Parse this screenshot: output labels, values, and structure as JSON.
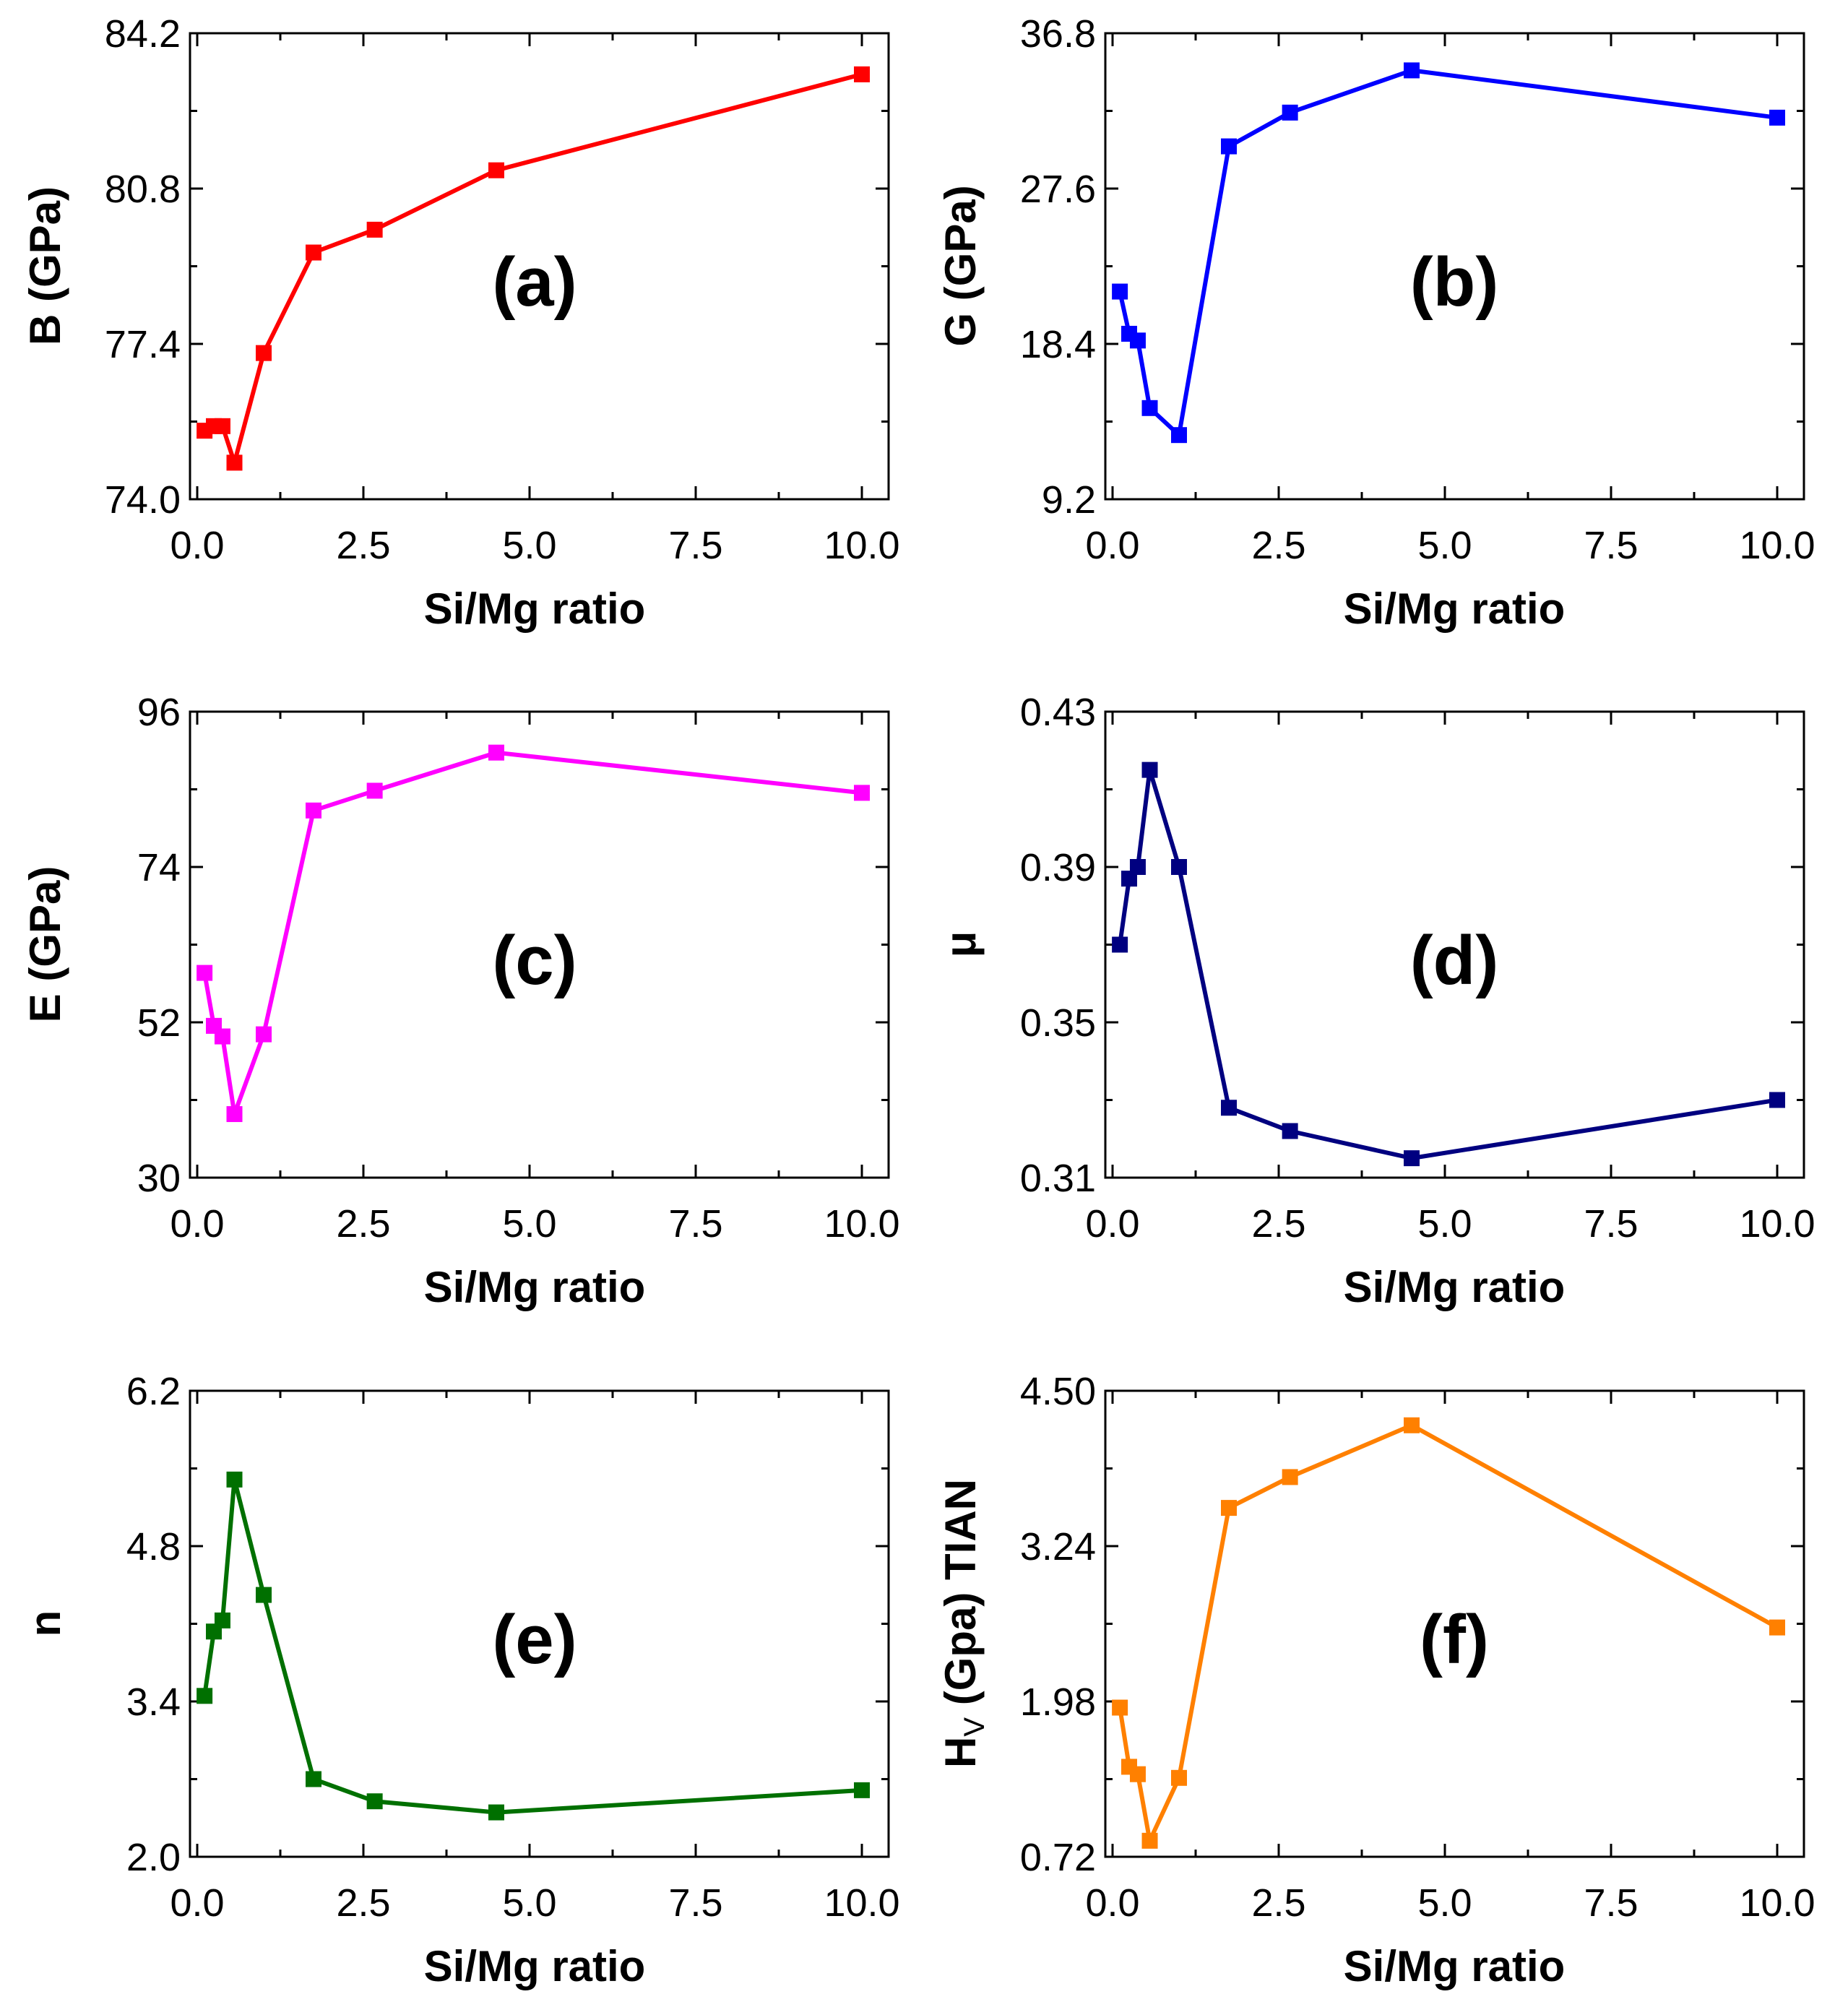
{
  "chart_data": [
    {
      "type": "line",
      "panel_label": "(a)",
      "title": "",
      "xlabel": "Si/Mg ratio",
      "ylabel": "B (GPa)",
      "xlim": [
        0,
        10.0
      ],
      "ylim": [
        74.0,
        84.2
      ],
      "xticks": [
        "0.0",
        "2.5",
        "5.0",
        "7.5",
        "10.0"
      ],
      "yticks": [
        "74.0",
        "77.4",
        "80.8",
        "84.2"
      ],
      "color": "#ff0000",
      "series": [
        {
          "name": "B",
          "x": [
            0.11,
            0.25,
            0.38,
            0.56,
            1.0,
            1.75,
            2.67,
            4.5,
            10.0
          ],
          "y": [
            75.5,
            75.6,
            75.6,
            74.8,
            77.2,
            79.4,
            79.9,
            81.2,
            83.3
          ]
        }
      ]
    },
    {
      "type": "line",
      "panel_label": "(b)",
      "title": "",
      "xlabel": "Si/Mg ratio",
      "ylabel": "G (GPa)",
      "xlim": [
        0,
        10.0
      ],
      "ylim": [
        9.2,
        36.8
      ],
      "xticks": [
        "0.0",
        "2.5",
        "5.0",
        "7.5",
        "10.0"
      ],
      "yticks": [
        "9.2",
        "18.4",
        "27.6",
        "36.8"
      ],
      "color": "#0000ff",
      "series": [
        {
          "name": "G",
          "x": [
            0.11,
            0.25,
            0.38,
            0.56,
            1.0,
            1.75,
            2.67,
            4.5,
            10.0
          ],
          "y": [
            21.5,
            19.0,
            18.6,
            14.6,
            13.0,
            30.1,
            32.1,
            34.6,
            31.8
          ]
        }
      ]
    },
    {
      "type": "line",
      "panel_label": "(c)",
      "title": "",
      "xlabel": "Si/Mg ratio",
      "ylabel": "E (GPa)",
      "xlim": [
        0,
        10.0
      ],
      "ylim": [
        30,
        96
      ],
      "xticks": [
        "0.0",
        "2.5",
        "5.0",
        "7.5",
        "10.0"
      ],
      "yticks": [
        "30",
        "52",
        "74",
        "96"
      ],
      "color": "#ff00ff",
      "series": [
        {
          "name": "E",
          "x": [
            0.11,
            0.25,
            0.38,
            0.56,
            1.0,
            1.75,
            2.67,
            4.5,
            10.0
          ],
          "y": [
            59.0,
            51.5,
            50.0,
            39.0,
            50.3,
            82.0,
            84.8,
            90.2,
            84.5
          ]
        }
      ]
    },
    {
      "type": "line",
      "panel_label": "(d)",
      "title": "",
      "xlabel": "Si/Mg ratio",
      "ylabel": "μ",
      "xlim": [
        0,
        10.0
      ],
      "ylim": [
        0.31,
        0.43
      ],
      "xticks": [
        "0.0",
        "2.5",
        "5.0",
        "7.5",
        "10.0"
      ],
      "yticks": [
        "0.31",
        "0.35",
        "0.39",
        "0.43"
      ],
      "color": "#000080",
      "series": [
        {
          "name": "μ",
          "x": [
            0.11,
            0.25,
            0.38,
            0.56,
            1.0,
            1.75,
            2.67,
            4.5,
            10.0
          ],
          "y": [
            0.37,
            0.387,
            0.39,
            0.415,
            0.39,
            0.328,
            0.322,
            0.315,
            0.33
          ]
        }
      ]
    },
    {
      "type": "line",
      "panel_label": "(e)",
      "title": "",
      "xlabel": "Si/Mg ratio",
      "ylabel": "n",
      "xlim": [
        0,
        10.0
      ],
      "ylim": [
        2.0,
        6.2
      ],
      "xticks": [
        "0.0",
        "2.5",
        "5.0",
        "7.5",
        "10.0"
      ],
      "yticks": [
        "2.0",
        "3.4",
        "4.8",
        "6.2"
      ],
      "color": "#007000",
      "series": [
        {
          "name": "n",
          "x": [
            0.11,
            0.25,
            0.38,
            0.56,
            1.0,
            1.75,
            2.67,
            4.5,
            10.0
          ],
          "y": [
            3.45,
            4.03,
            4.13,
            5.4,
            4.36,
            2.7,
            2.5,
            2.4,
            2.6
          ]
        }
      ]
    },
    {
      "type": "line",
      "panel_label": "(f)",
      "title": "",
      "xlabel": "Si/Mg ratio",
      "ylabel": "H",
      "ylabel_sub": "V",
      "ylabel_rest": " (Gpa) TIAN",
      "xlim": [
        0,
        10.0
      ],
      "ylim": [
        0.72,
        4.5
      ],
      "xticks": [
        "0.0",
        "2.5",
        "5.0",
        "7.5",
        "10.0"
      ],
      "yticks": [
        "0.72",
        "1.98",
        "3.24",
        "4.50"
      ],
      "color": "#ff8000",
      "series": [
        {
          "name": "HV",
          "x": [
            0.11,
            0.25,
            0.38,
            0.56,
            1.0,
            1.75,
            2.67,
            4.5,
            10.0
          ],
          "y": [
            1.93,
            1.45,
            1.39,
            0.85,
            1.36,
            3.55,
            3.8,
            4.22,
            2.58
          ]
        }
      ]
    }
  ]
}
